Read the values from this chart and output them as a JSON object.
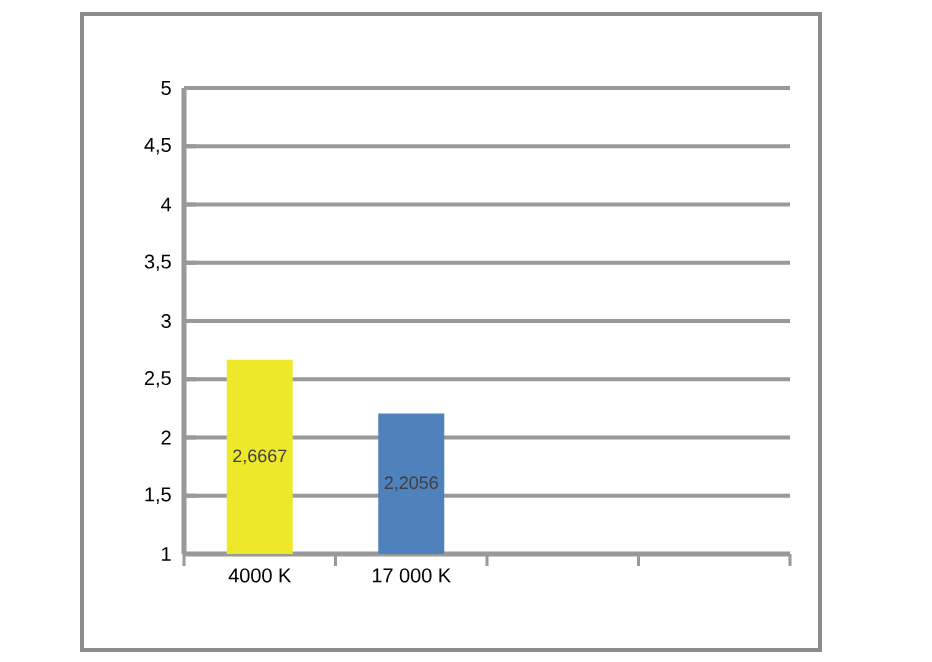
{
  "chart_data": {
    "type": "bar",
    "categories": [
      "4000 K",
      "17 000 K",
      null,
      null
    ],
    "values": [
      2.6667,
      2.2056,
      null,
      null
    ],
    "colors": [
      "#eee82a",
      "#4f81bd",
      "#4f81bd",
      "#4f81bd"
    ],
    "value_labels": [
      "2,6667",
      "2,2056",
      null,
      null
    ],
    "ylim": [
      1,
      5
    ],
    "yticks": [
      1,
      {
        "value": 1.5,
        "label": "1,5"
      },
      2,
      {
        "value": 2.5,
        "label": "2,5"
      },
      3,
      {
        "value": 3.5,
        "label": "3,5"
      },
      4,
      {
        "value": 4.5,
        "label": "4,5"
      },
      5
    ],
    "grid": "y"
  }
}
